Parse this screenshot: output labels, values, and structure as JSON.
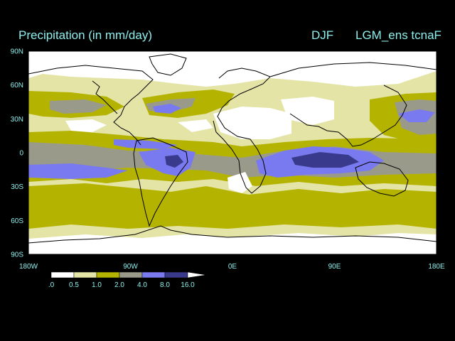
{
  "header": {
    "title": "Precipitation (in mm/day)",
    "season": "DJF",
    "run": "LGM_ens tcnaF"
  },
  "map": {
    "lon_ticks": [
      "180W",
      "90W",
      "0E",
      "90E",
      "180E"
    ],
    "lat_ticks": [
      "90N",
      "60N",
      "30N",
      "0",
      "30S",
      "60S",
      "90S"
    ],
    "lon_range": [
      -180,
      180
    ],
    "lat_range": [
      -90,
      90
    ]
  },
  "colorbar": {
    "labels": [
      ".0",
      "0.5",
      "1.0",
      "2.0",
      "4.0",
      "8.0",
      "16.0"
    ],
    "colors": [
      "#ffffff",
      "#e4e4a6",
      "#b4b400",
      "#9a9a8a",
      "#7a7af0",
      "#3a3a8c"
    ]
  },
  "colors": {
    "background": "#000000",
    "text": "#8ef0ee",
    "land_outline": "#000000"
  }
}
